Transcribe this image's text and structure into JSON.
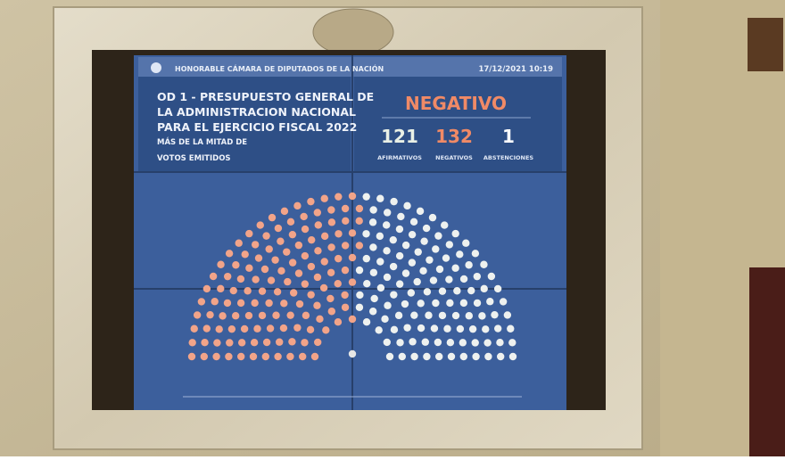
{
  "header": {
    "chamber": "HONORABLE CÁMARA DE DIPUTADOS DE LA NACIÓN",
    "date": "17/12/2021 10:19"
  },
  "motion": {
    "title_lines": [
      "OD 1 - PRESUPUESTO GENERAL DE",
      "LA ADMINISTRACION NACIONAL",
      "PARA EL EJERCICIO FISCAL 2022"
    ],
    "majority_lines": [
      "MÁS DE LA MITAD DE",
      "VOTOS EMITIDOS"
    ]
  },
  "result": "NEGATIVO",
  "tallies": [
    {
      "count": 121,
      "label": "AFIRMATIVOS"
    },
    {
      "count": 132,
      "label": "NEGATIVOS"
    },
    {
      "count": 1,
      "label": "ABSTENCIONES"
    }
  ]
}
